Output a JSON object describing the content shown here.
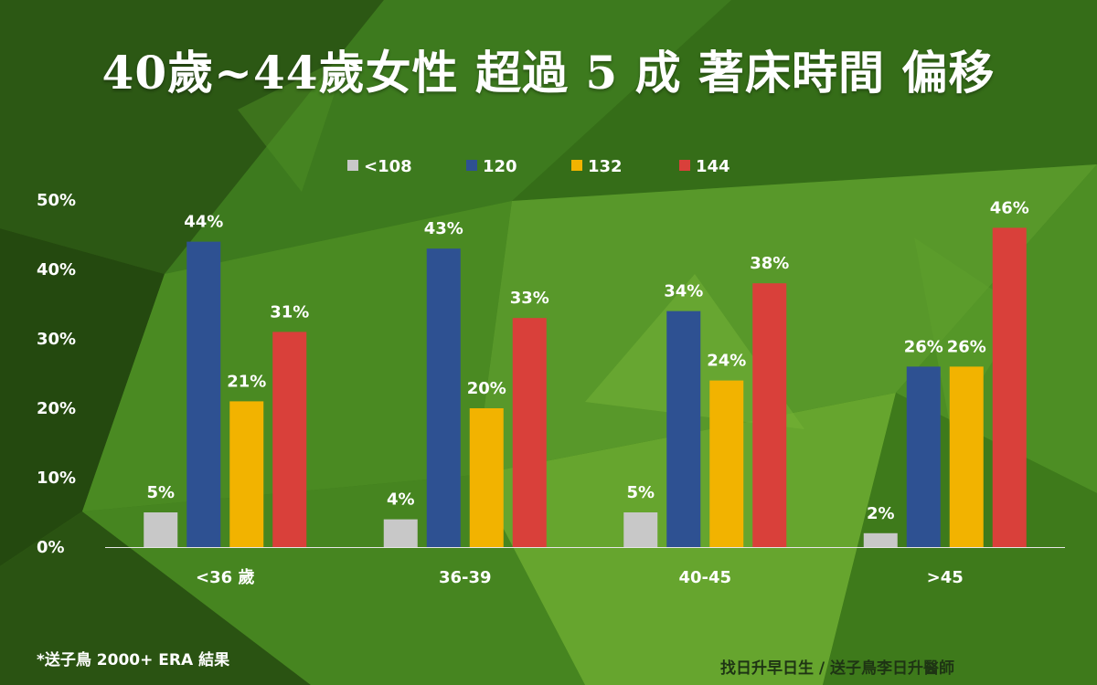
{
  "title": "40歲~44歲女性 超過 5 成 著床時間 偏移",
  "footnote": "*送子鳥 2000+ ERA 結果",
  "credit": "找日升早日生 / 送子鳥李日升醫師",
  "colors": {
    "bg_dark": "#2f5a16",
    "bg_light": "#6aa92c",
    "axis_line": "#e6e6e6"
  },
  "chart_data": {
    "type": "bar",
    "categories": [
      "<36 歲",
      "36-39",
      "40-45",
      ">45"
    ],
    "series": [
      {
        "name": "<108",
        "color": "#c8c8c8",
        "values": [
          5,
          4,
          5,
          2
        ],
        "labels": [
          "5%",
          "4%",
          "5%",
          "2%"
        ]
      },
      {
        "name": "120",
        "color": "#2e5192",
        "values": [
          44,
          43,
          34,
          26
        ],
        "labels": [
          "44%",
          "43%",
          "34%",
          "26%"
        ]
      },
      {
        "name": "132",
        "color": "#f2b300",
        "values": [
          21,
          20,
          24,
          26
        ],
        "labels": [
          "21%",
          "20%",
          "24%",
          "26%"
        ]
      },
      {
        "name": "144",
        "color": "#d9403a",
        "values": [
          31,
          33,
          38,
          46
        ],
        "labels": [
          "31%",
          "33%",
          "38%",
          "46%"
        ]
      }
    ],
    "y_ticks": [
      "0%",
      "10%",
      "20%",
      "30%",
      "40%",
      "50%"
    ],
    "ylim": [
      0,
      50
    ],
    "legend": "top-center",
    "grid": false
  }
}
